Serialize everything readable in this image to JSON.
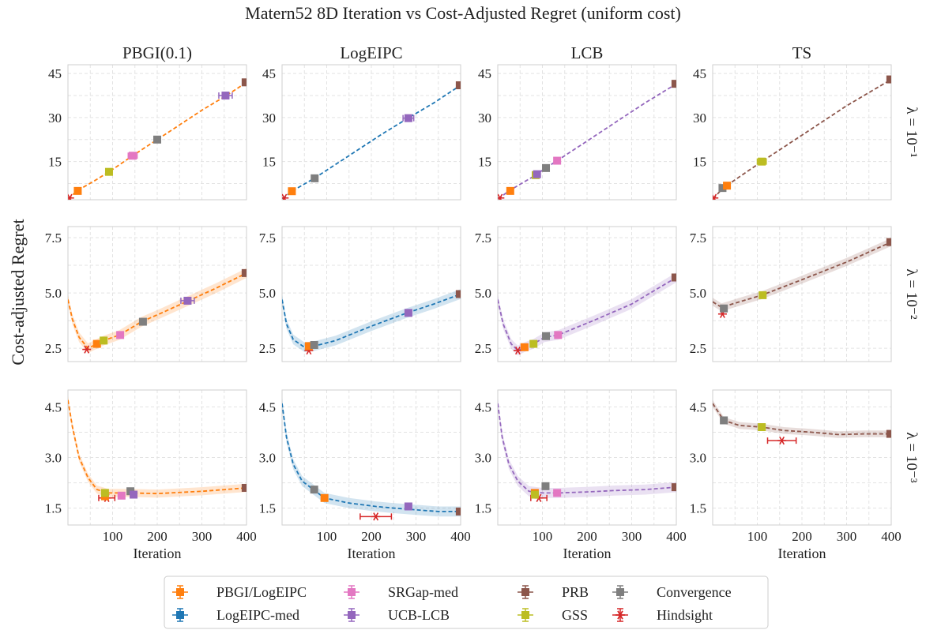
{
  "title": "Matern52 8D Iteration vs Cost-Adjusted Regret (uniform cost)",
  "ylabel": "Cost-adjusted Regret",
  "xlabel": "Iteration",
  "legend": [
    {
      "name": "PBGI/LogEIPC",
      "color": "#ff7f0e",
      "marker": "square"
    },
    {
      "name": "LogEIPC-med",
      "color": "#1f77b4",
      "marker": "square"
    },
    {
      "name": "SRGap-med",
      "color": "#e377c2",
      "marker": "square"
    },
    {
      "name": "UCB-LCB",
      "color": "#9467bd",
      "marker": "square"
    },
    {
      "name": "PRB",
      "color": "#8c564b",
      "marker": "square"
    },
    {
      "name": "GSS",
      "color": "#bcbd22",
      "marker": "square"
    },
    {
      "name": "Convergence",
      "color": "#7f7f7f",
      "marker": "square"
    },
    {
      "name": "Hindsight",
      "color": "#d62728",
      "marker": "star"
    }
  ],
  "chart_data": {
    "type": "line",
    "grid": true,
    "legend_position": "bottom-center",
    "columns": [
      {
        "title": "PBGI(0.1)",
        "color": "#ff7f0e"
      },
      {
        "title": "LogEIPC",
        "color": "#1f77b4"
      },
      {
        "title": "LCB",
        "color": "#9467bd"
      },
      {
        "title": "TS",
        "color": "#8c564b"
      }
    ],
    "rows": [
      {
        "label": "λ = 10⁻¹",
        "ylim": [
          2,
          48
        ],
        "yticks": [
          15,
          30,
          45
        ]
      },
      {
        "label": "λ = 10⁻²",
        "ylim": [
          1.9,
          8.0
        ],
        "yticks": [
          2.5,
          5.0,
          7.5
        ]
      },
      {
        "label": "λ = 10⁻³",
        "ylim": [
          1.0,
          5.0
        ],
        "yticks": [
          1.5,
          3.0,
          4.5
        ]
      }
    ],
    "xlim": [
      0,
      400
    ],
    "xticks": [
      100,
      200,
      300,
      400
    ],
    "panels": [
      {
        "row": 0,
        "col": 0,
        "band": 0,
        "curve": [
          [
            1,
            2.3
          ],
          [
            20,
            5
          ],
          [
            60,
            8.5
          ],
          [
            92,
            11.5
          ],
          [
            145,
            17
          ],
          [
            200,
            22.5
          ],
          [
            260,
            28.5
          ],
          [
            300,
            32.5
          ],
          [
            355,
            37.5
          ],
          [
            400,
            42
          ]
        ],
        "markers": [
          {
            "s": "Hindsight",
            "x": 4,
            "y": 2.6
          },
          {
            "s": "PBGI/LogEIPC",
            "x": 22,
            "y": 5
          },
          {
            "s": "GSS",
            "x": 92,
            "y": 11.5
          },
          {
            "s": "SRGap-med",
            "x": 145,
            "y": 17,
            "xe": 10
          },
          {
            "s": "Convergence",
            "x": 200,
            "y": 22.5
          },
          {
            "s": "UCB-LCB",
            "x": 353,
            "y": 37.5,
            "xe": 15
          },
          {
            "s": "PRB",
            "x": 398,
            "y": 42
          }
        ]
      },
      {
        "row": 0,
        "col": 1,
        "band": 0,
        "curve": [
          [
            1,
            2.3
          ],
          [
            22,
            4.9
          ],
          [
            72,
            9.3
          ],
          [
            150,
            17
          ],
          [
            220,
            24
          ],
          [
            282,
            29.8
          ],
          [
            340,
            35
          ],
          [
            400,
            41
          ]
        ],
        "markers": [
          {
            "s": "Hindsight",
            "x": 5,
            "y": 2.6
          },
          {
            "s": "PBGI/LogEIPC",
            "x": 22,
            "y": 4.9
          },
          {
            "s": "Convergence",
            "x": 73,
            "y": 9.3
          },
          {
            "s": "UCB-LCB",
            "x": 283,
            "y": 29.8,
            "xe": 12
          },
          {
            "s": "PRB",
            "x": 398,
            "y": 41
          }
        ]
      },
      {
        "row": 0,
        "col": 2,
        "band": 0,
        "curve": [
          [
            1,
            2.3
          ],
          [
            25,
            5
          ],
          [
            85,
            10.4
          ],
          [
            107,
            12.8
          ],
          [
            133,
            15.3
          ],
          [
            200,
            22
          ],
          [
            270,
            29
          ],
          [
            330,
            35
          ],
          [
            400,
            41.5
          ]
        ],
        "markers": [
          {
            "s": "Hindsight",
            "x": 5,
            "y": 2.6
          },
          {
            "s": "PBGI/LogEIPC",
            "x": 28,
            "y": 5
          },
          {
            "s": "GSS",
            "x": 85,
            "y": 10.4
          },
          {
            "s": "UCB-LCB",
            "x": 88,
            "y": 10.7
          },
          {
            "s": "Convergence",
            "x": 108,
            "y": 12.8
          },
          {
            "s": "SRGap-med",
            "x": 133,
            "y": 15.3
          },
          {
            "s": "PRB",
            "x": 398,
            "y": 41.5
          }
        ]
      },
      {
        "row": 0,
        "col": 3,
        "band": 0,
        "curve": [
          [
            1,
            2.3
          ],
          [
            20,
            5.5
          ],
          [
            30,
            6.7
          ],
          [
            110,
            15
          ],
          [
            200,
            24
          ],
          [
            300,
            34
          ],
          [
            400,
            43
          ]
        ],
        "markers": [
          {
            "s": "Hindsight",
            "x": 3,
            "y": 2.6
          },
          {
            "s": "Convergence",
            "x": 22,
            "y": 6
          },
          {
            "s": "PBGI/LogEIPC",
            "x": 32,
            "y": 6.8
          },
          {
            "s": "GSS",
            "x": 110,
            "y": 15,
            "xe": 10,
            "ye": 1.2
          },
          {
            "s": "PRB",
            "x": 398,
            "y": 43
          }
        ]
      },
      {
        "row": 1,
        "col": 0,
        "band": 0.22,
        "curve": [
          [
            0,
            4.7
          ],
          [
            10,
            3.8
          ],
          [
            25,
            3.0
          ],
          [
            45,
            2.5
          ],
          [
            65,
            2.7
          ],
          [
            80,
            2.85
          ],
          [
            115,
            3.1
          ],
          [
            165,
            3.7
          ],
          [
            210,
            4.1
          ],
          [
            270,
            4.65
          ],
          [
            330,
            5.2
          ],
          [
            400,
            5.9
          ]
        ],
        "markers": [
          {
            "s": "Hindsight",
            "x": 42,
            "y": 2.45
          },
          {
            "s": "PBGI/LogEIPC",
            "x": 65,
            "y": 2.7
          },
          {
            "s": "GSS",
            "x": 80,
            "y": 2.85
          },
          {
            "s": "SRGap-med",
            "x": 117,
            "y": 3.1
          },
          {
            "s": "Convergence",
            "x": 168,
            "y": 3.7
          },
          {
            "s": "UCB-LCB",
            "x": 268,
            "y": 4.65,
            "xe": 15
          },
          {
            "s": "PRB",
            "x": 398,
            "y": 5.9
          }
        ]
      },
      {
        "row": 1,
        "col": 1,
        "band": 0.22,
        "curve": [
          [
            0,
            4.7
          ],
          [
            10,
            3.6
          ],
          [
            25,
            2.9
          ],
          [
            50,
            2.55
          ],
          [
            72,
            2.6
          ],
          [
            120,
            2.85
          ],
          [
            200,
            3.5
          ],
          [
            280,
            4.1
          ],
          [
            340,
            4.5
          ],
          [
            400,
            4.95
          ]
        ],
        "markers": [
          {
            "s": "Hindsight",
            "x": 60,
            "y": 2.4
          },
          {
            "s": "PBGI/LogEIPC",
            "x": 60,
            "y": 2.6
          },
          {
            "s": "Convergence",
            "x": 72,
            "y": 2.65
          },
          {
            "s": "UCB-LCB",
            "x": 283,
            "y": 4.1
          },
          {
            "s": "PRB",
            "x": 398,
            "y": 4.95
          }
        ]
      },
      {
        "row": 1,
        "col": 2,
        "band": 0.22,
        "curve": [
          [
            0,
            4.7
          ],
          [
            12,
            3.6
          ],
          [
            30,
            2.7
          ],
          [
            45,
            2.4
          ],
          [
            60,
            2.55
          ],
          [
            80,
            2.7
          ],
          [
            105,
            3.0
          ],
          [
            135,
            3.1
          ],
          [
            220,
            3.8
          ],
          [
            300,
            4.5
          ],
          [
            400,
            5.7
          ]
        ],
        "markers": [
          {
            "s": "Hindsight",
            "x": 45,
            "y": 2.4
          },
          {
            "s": "PBGI/LogEIPC",
            "x": 60,
            "y": 2.55
          },
          {
            "s": "GSS",
            "x": 80,
            "y": 2.7
          },
          {
            "s": "Convergence",
            "x": 108,
            "y": 3.05
          },
          {
            "s": "SRGap-med",
            "x": 135,
            "y": 3.1
          },
          {
            "s": "PRB",
            "x": 398,
            "y": 5.7
          }
        ]
      },
      {
        "row": 1,
        "col": 3,
        "band": 0.18,
        "curve": [
          [
            0,
            4.6
          ],
          [
            20,
            4.35
          ],
          [
            60,
            4.6
          ],
          [
            110,
            4.9
          ],
          [
            200,
            5.6
          ],
          [
            300,
            6.4
          ],
          [
            400,
            7.3
          ]
        ],
        "markers": [
          {
            "s": "Hindsight",
            "x": 22,
            "y": 4.05
          },
          {
            "s": "Convergence",
            "x": 25,
            "y": 4.3
          },
          {
            "s": "GSS",
            "x": 112,
            "y": 4.9
          },
          {
            "s": "PRB",
            "x": 398,
            "y": 7.3
          }
        ]
      },
      {
        "row": 2,
        "col": 0,
        "band": 0.12,
        "curve": [
          [
            0,
            4.7
          ],
          [
            10,
            3.9
          ],
          [
            25,
            3.0
          ],
          [
            45,
            2.4
          ],
          [
            65,
            2.05
          ],
          [
            90,
            1.95
          ],
          [
            140,
            1.95
          ],
          [
            200,
            1.93
          ],
          [
            300,
            2.0
          ],
          [
            400,
            2.1
          ]
        ],
        "markers": [
          {
            "s": "Hindsight",
            "x": 87,
            "y": 1.8,
            "xe": 18
          },
          {
            "s": "PBGI/LogEIPC",
            "x": 83,
            "y": 1.85
          },
          {
            "s": "GSS",
            "x": 83,
            "y": 1.95
          },
          {
            "s": "SRGap-med",
            "x": 120,
            "y": 1.87
          },
          {
            "s": "Convergence",
            "x": 140,
            "y": 2.0
          },
          {
            "s": "UCB-LCB",
            "x": 147,
            "y": 1.9
          },
          {
            "s": "PRB",
            "x": 398,
            "y": 2.1
          }
        ]
      },
      {
        "row": 2,
        "col": 1,
        "band": 0.15,
        "curve": [
          [
            0,
            4.6
          ],
          [
            10,
            3.6
          ],
          [
            25,
            2.8
          ],
          [
            45,
            2.3
          ],
          [
            70,
            2.05
          ],
          [
            95,
            1.8
          ],
          [
            150,
            1.65
          ],
          [
            210,
            1.55
          ],
          [
            250,
            1.5
          ],
          [
            300,
            1.45
          ],
          [
            350,
            1.4
          ],
          [
            400,
            1.4
          ]
        ],
        "markers": [
          {
            "s": "Hindsight",
            "x": 210,
            "y": 1.25,
            "xe": 35
          },
          {
            "s": "Convergence",
            "x": 72,
            "y": 2.05
          },
          {
            "s": "PBGI/LogEIPC",
            "x": 95,
            "y": 1.8
          },
          {
            "s": "UCB-LCB",
            "x": 283,
            "y": 1.55
          },
          {
            "s": "PRB",
            "x": 398,
            "y": 1.4
          }
        ]
      },
      {
        "row": 2,
        "col": 2,
        "band": 0.15,
        "curve": [
          [
            0,
            4.6
          ],
          [
            10,
            3.6
          ],
          [
            25,
            2.8
          ],
          [
            45,
            2.3
          ],
          [
            70,
            2.0
          ],
          [
            100,
            1.95
          ],
          [
            135,
            1.95
          ],
          [
            200,
            1.98
          ],
          [
            260,
            2.02
          ],
          [
            330,
            2.05
          ],
          [
            400,
            2.12
          ]
        ],
        "markers": [
          {
            "s": "Hindsight",
            "x": 92,
            "y": 1.8,
            "xe": 18
          },
          {
            "s": "PBGI/LogEIPC",
            "x": 83,
            "y": 1.95
          },
          {
            "s": "GSS",
            "x": 83,
            "y": 1.9
          },
          {
            "s": "Convergence",
            "x": 107,
            "y": 2.15
          },
          {
            "s": "SRGap-med",
            "x": 133,
            "y": 1.95
          },
          {
            "s": "PRB",
            "x": 398,
            "y": 2.12
          }
        ]
      },
      {
        "row": 2,
        "col": 3,
        "band": 0.1,
        "curve": [
          [
            0,
            4.6
          ],
          [
            25,
            4.1
          ],
          [
            60,
            3.95
          ],
          [
            110,
            3.9
          ],
          [
            160,
            3.8
          ],
          [
            220,
            3.75
          ],
          [
            280,
            3.68
          ],
          [
            340,
            3.7
          ],
          [
            400,
            3.7
          ]
        ],
        "markers": [
          {
            "s": "Hindsight",
            "x": 155,
            "y": 3.5,
            "xe": 32
          },
          {
            "s": "Convergence",
            "x": 25,
            "y": 4.1
          },
          {
            "s": "GSS",
            "x": 110,
            "y": 3.9
          },
          {
            "s": "PRB",
            "x": 398,
            "y": 3.7
          }
        ]
      }
    ]
  }
}
